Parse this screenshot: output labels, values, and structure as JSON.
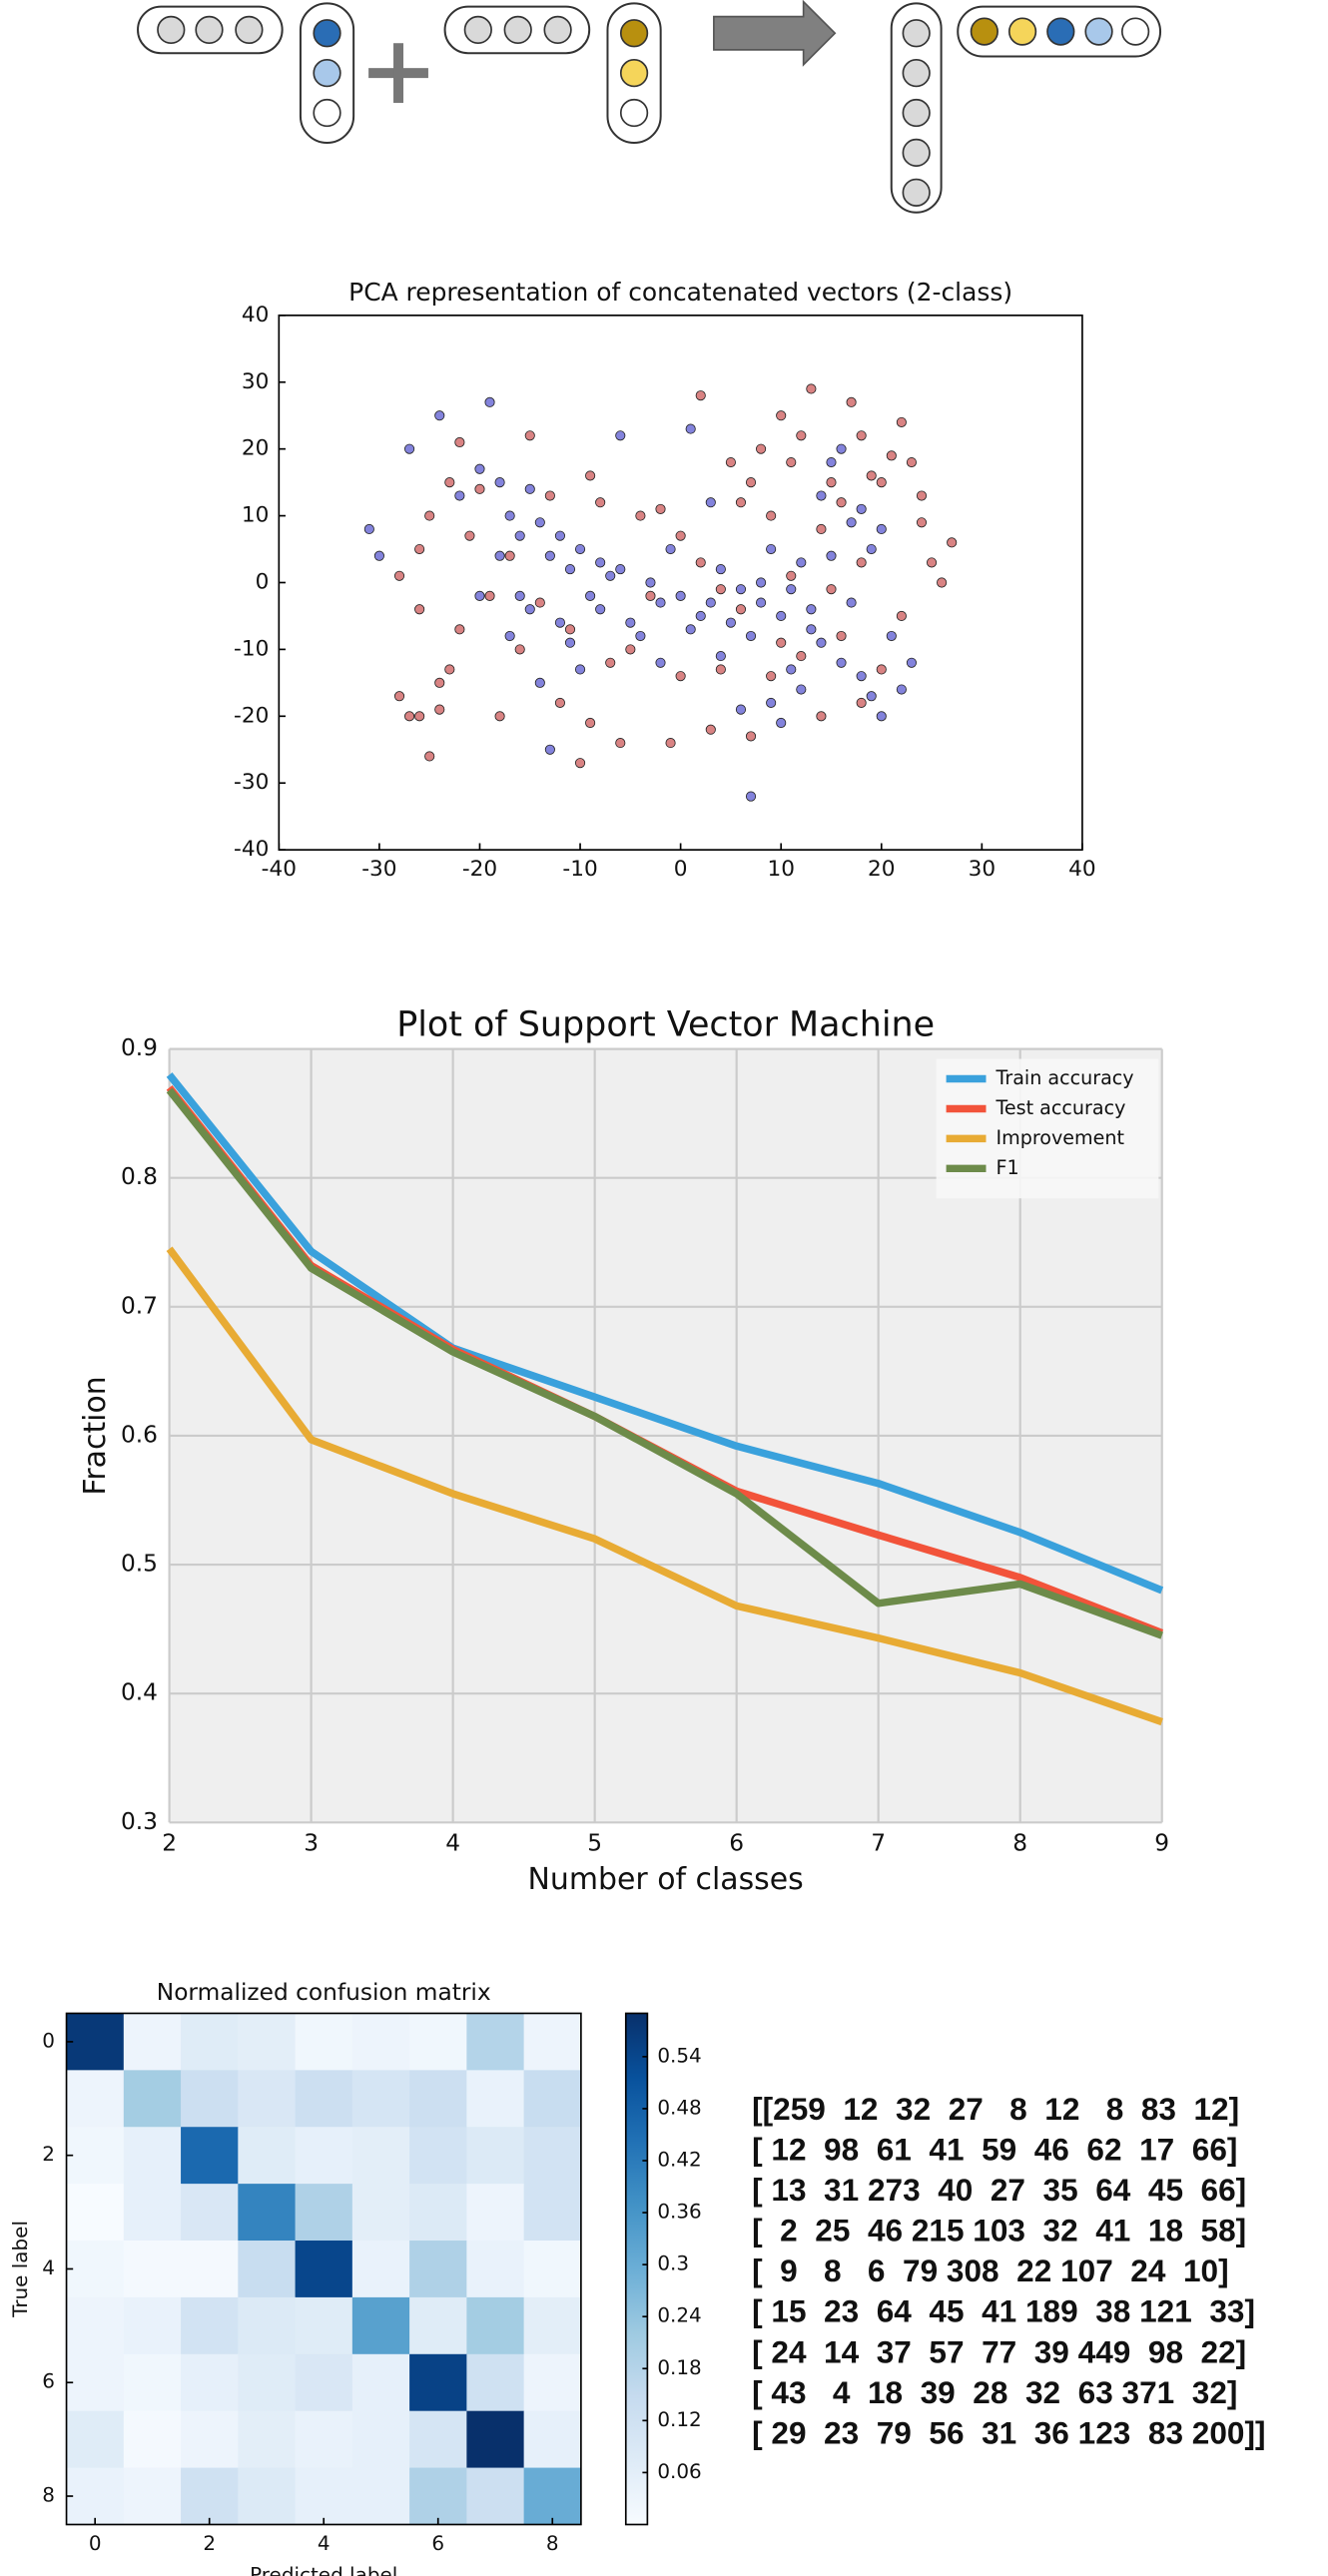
{
  "chart_data": [
    {
      "type": "scatter",
      "title": "PCA representation of concatenated vectors (2-class)",
      "xlim": [
        -40,
        40
      ],
      "ylim": [
        -40,
        40
      ],
      "xticks": [
        -40,
        -30,
        -20,
        -10,
        0,
        10,
        20,
        30,
        40
      ],
      "yticks": [
        -40,
        -30,
        -20,
        -10,
        0,
        10,
        20,
        30,
        40
      ],
      "series": [
        {
          "color": "#5a5ad0",
          "x": [
            -31,
            -30,
            -24,
            -27,
            -22,
            -20,
            -19,
            -18,
            -17,
            -16,
            -15,
            -14,
            -13,
            -12,
            -11,
            -10,
            -9,
            -8,
            -7,
            -6,
            -5,
            -4,
            -3,
            -2,
            -1,
            0,
            1,
            2,
            3,
            4,
            5,
            6,
            7,
            8,
            9,
            10,
            11,
            12,
            13,
            14,
            15,
            16,
            17,
            18,
            19,
            20,
            21,
            22,
            12,
            11,
            13,
            14,
            15,
            16,
            17,
            18,
            19,
            -6,
            1,
            -17,
            -16,
            -14,
            -13,
            -10,
            -8,
            -2,
            4,
            6,
            9,
            10,
            -20,
            -18,
            -15,
            -12,
            -11,
            8,
            7,
            23,
            20,
            3
          ],
          "values": [
            8,
            4,
            25,
            20,
            13,
            17,
            27,
            15,
            10,
            7,
            14,
            9,
            4,
            7,
            2,
            5,
            -2,
            3,
            1,
            2,
            -6,
            -8,
            0,
            -3,
            5,
            -2,
            -7,
            -5,
            -3,
            2,
            -6,
            -1,
            -32,
            0,
            5,
            -5,
            -1,
            3,
            -7,
            -9,
            4,
            -12,
            -3,
            -14,
            -17,
            -20,
            -8,
            -16,
            -16,
            -13,
            -4,
            13,
            18,
            20,
            9,
            11,
            5,
            22,
            23,
            -8,
            -2,
            -15,
            -25,
            -13,
            -4,
            -12,
            -11,
            -19,
            -18,
            -21,
            -2,
            4,
            -4,
            -6,
            -9,
            -3,
            -8,
            -12,
            8,
            12
          ]
        },
        {
          "color": "#cc5a5a",
          "x": [
            -28,
            -27,
            -26,
            -25,
            -24,
            -23,
            -22,
            -28,
            -26,
            -25,
            -23,
            -21,
            -19,
            -18,
            -16,
            -14,
            -12,
            -10,
            -9,
            -6,
            -5,
            -4,
            -2,
            0,
            2,
            3,
            4,
            5,
            6,
            7,
            8,
            9,
            10,
            11,
            12,
            13,
            14,
            15,
            16,
            17,
            18,
            19,
            20,
            21,
            22,
            23,
            24,
            25,
            26,
            27,
            22,
            20,
            18,
            16,
            14,
            12,
            10,
            6,
            4,
            2,
            0,
            -3,
            -7,
            -8,
            -11,
            -13,
            -15,
            -17,
            -20,
            -22,
            -26,
            -24,
            -1,
            9,
            7,
            11,
            15,
            18,
            24,
            -9
          ],
          "values": [
            -17,
            -20,
            -20,
            -26,
            -19,
            -13,
            -7,
            1,
            5,
            10,
            15,
            7,
            -2,
            -20,
            -10,
            -3,
            -18,
            -27,
            -21,
            -24,
            -10,
            10,
            11,
            -14,
            28,
            -22,
            -13,
            18,
            12,
            15,
            20,
            10,
            25,
            18,
            22,
            29,
            8,
            15,
            12,
            27,
            22,
            16,
            15,
            19,
            24,
            18,
            13,
            3,
            0,
            6,
            -5,
            -13,
            -18,
            -8,
            -20,
            -11,
            -9,
            -4,
            -1,
            3,
            7,
            -2,
            -12,
            12,
            -7,
            13,
            22,
            4,
            14,
            21,
            -4,
            -15,
            -24,
            -14,
            -23,
            1,
            -1,
            3,
            9,
            16
          ]
        }
      ]
    },
    {
      "type": "line",
      "title": "Plot of Support Vector Machine",
      "x_label": "Number of classes",
      "y_label": "Fraction",
      "x": [
        2,
        3,
        4,
        5,
        6,
        7,
        8,
        9
      ],
      "xlim": [
        2,
        9
      ],
      "ylim": [
        0.3,
        0.9
      ],
      "xticks": [
        2,
        3,
        4,
        5,
        6,
        7,
        8,
        9
      ],
      "yticks": [
        0.3,
        0.4,
        0.5,
        0.6,
        0.7,
        0.8,
        0.9
      ],
      "grid": true,
      "legend": "upper-right",
      "series": [
        {
          "name": "Train accuracy",
          "color": "#3aa1dc",
          "values": [
            0.88,
            0.743,
            0.668,
            0.63,
            0.592,
            0.563,
            0.525,
            0.48
          ]
        },
        {
          "name": "Test accuracy",
          "color": "#f2533a",
          "values": [
            0.87,
            0.732,
            0.667,
            0.615,
            0.557,
            0.523,
            0.49,
            0.447
          ]
        },
        {
          "name": "Improvement",
          "color": "#e8ab34",
          "values": [
            0.745,
            0.597,
            0.555,
            0.52,
            0.468,
            0.443,
            0.416,
            0.378
          ]
        },
        {
          "name": "F1",
          "color": "#6d8b4a",
          "values": [
            0.868,
            0.73,
            0.665,
            0.615,
            0.555,
            0.47,
            0.485,
            0.445
          ]
        }
      ]
    },
    {
      "type": "heatmap",
      "title": "Normalized confusion matrix",
      "x_label": "Predicted label",
      "y_label": "True label",
      "xlim": [
        -0.5,
        8.5
      ],
      "ylim": [
        8.5,
        -0.5
      ],
      "xticks": [
        0,
        2,
        4,
        6,
        8
      ],
      "yticks": [
        0,
        2,
        4,
        6,
        8
      ],
      "clim": [
        0,
        0.59
      ],
      "colorbar_ticks": [
        0.06,
        0.12,
        0.18,
        0.24,
        0.3,
        0.36,
        0.42,
        0.48,
        0.54
      ],
      "colormap": [
        "#f7fbff",
        "#deebf7",
        "#c6dbef",
        "#9ecae1",
        "#6baed6",
        "#4292c6",
        "#2171b5",
        "#08519c",
        "#08306b"
      ],
      "z": [
        [
          0.57,
          0.03,
          0.07,
          0.06,
          0.02,
          0.03,
          0.02,
          0.18,
          0.03
        ],
        [
          0.03,
          0.21,
          0.13,
          0.09,
          0.13,
          0.1,
          0.13,
          0.04,
          0.14
        ],
        [
          0.02,
          0.05,
          0.46,
          0.07,
          0.05,
          0.06,
          0.11,
          0.08,
          0.11
        ],
        [
          0.0,
          0.05,
          0.09,
          0.4,
          0.19,
          0.06,
          0.08,
          0.03,
          0.11
        ],
        [
          0.02,
          0.01,
          0.01,
          0.14,
          0.54,
          0.04,
          0.19,
          0.04,
          0.02
        ],
        [
          0.03,
          0.04,
          0.11,
          0.08,
          0.07,
          0.33,
          0.07,
          0.21,
          0.06
        ],
        [
          0.03,
          0.02,
          0.05,
          0.07,
          0.09,
          0.05,
          0.55,
          0.12,
          0.03
        ],
        [
          0.07,
          0.01,
          0.03,
          0.06,
          0.04,
          0.05,
          0.1,
          0.59,
          0.05
        ],
        [
          0.04,
          0.03,
          0.12,
          0.08,
          0.05,
          0.05,
          0.19,
          0.13,
          0.3
        ]
      ]
    }
  ],
  "counts_matrix": {
    "lines": [
      "[[259  12  32  27   8  12   8  83  12]",
      "[ 12  98  61  41  59  46  62  17  66]",
      "[ 13  31 273  40  27  35  64  45  66]",
      "[  2  25  46 215 103  32  41  18  58]",
      "[  9   8   6  79 308  22 107  24  10]",
      "[ 15  23  64  45  41 189  38 121  33]",
      "[ 24  14  37  57  77  39 449  98  22]",
      "[ 43   4  18  39  28  32  63 371  32]",
      "[ 29  23  79  56  31  36 123  83 200]]"
    ]
  }
}
